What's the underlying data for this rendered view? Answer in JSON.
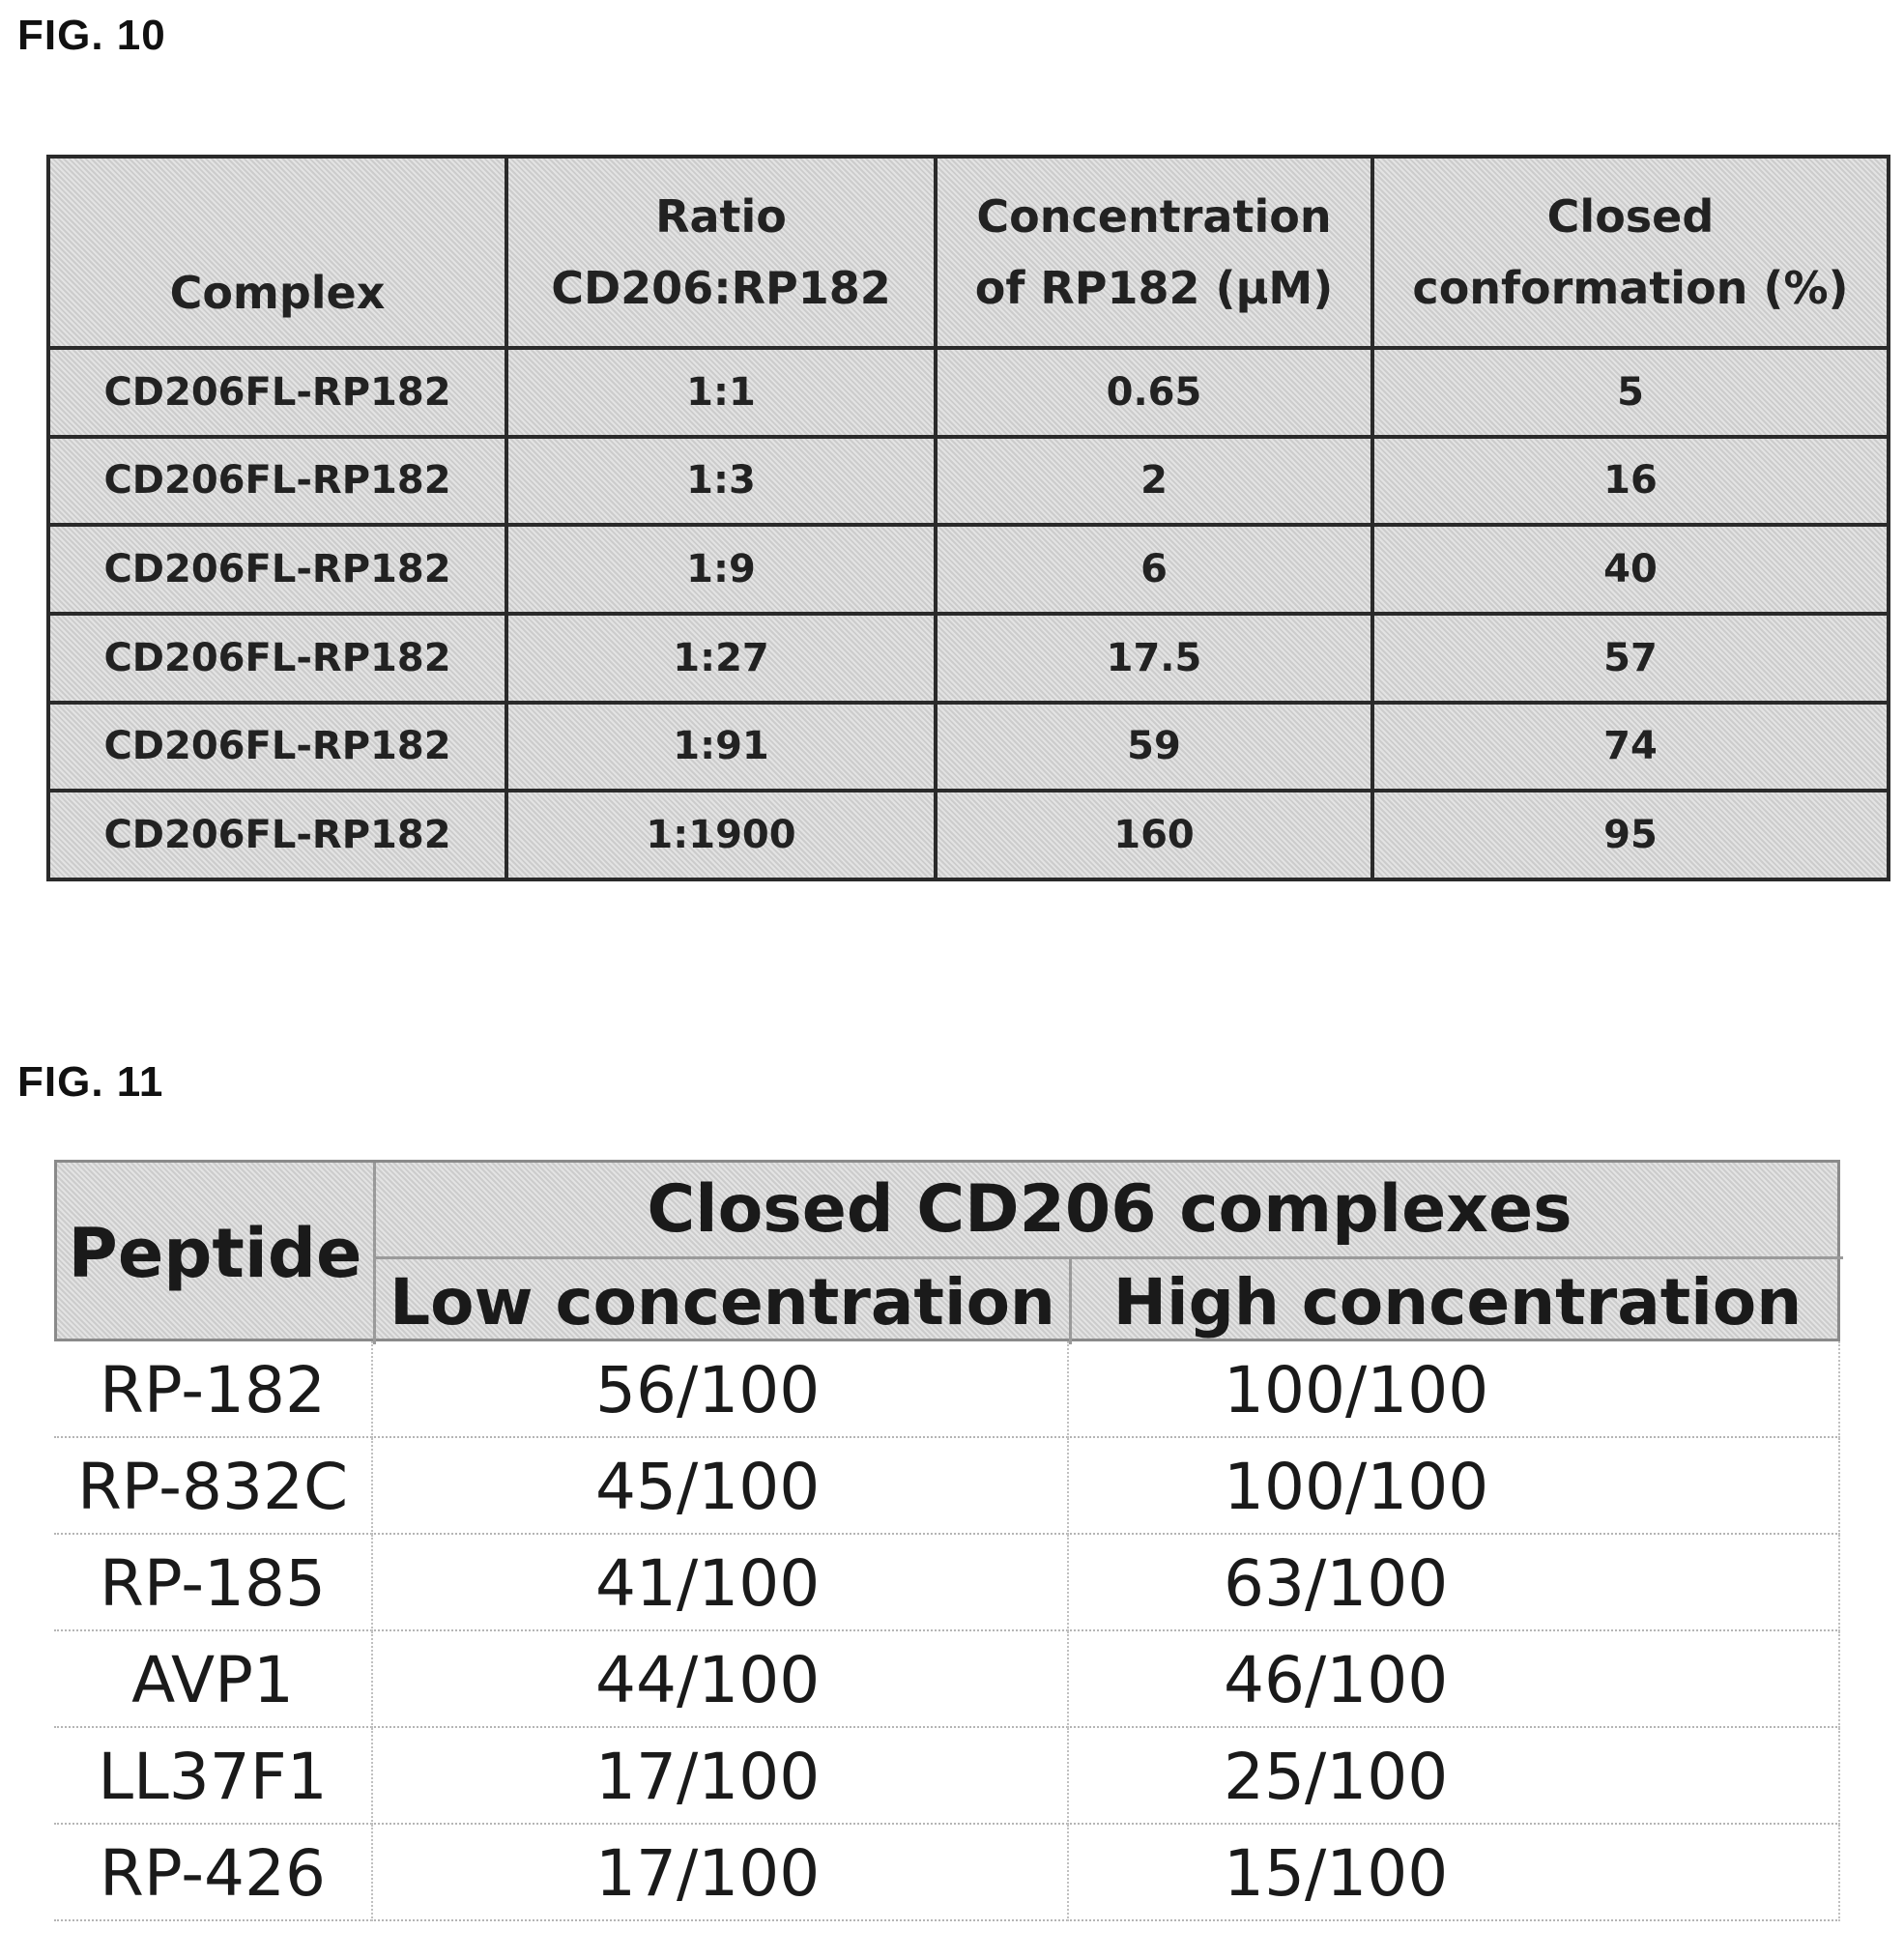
{
  "fig10": {
    "label": "FIG. 10",
    "headers": {
      "complex": "Complex",
      "ratio_line1": "Ratio",
      "ratio_line2": "CD206:RP182",
      "conc_line1": "Concentration",
      "conc_line2": "of RP182 (μM)",
      "closed_line1": "Closed",
      "closed_line2": "conformation (%)"
    },
    "rows": [
      {
        "complex": "CD206FL-RP182",
        "ratio": "1:1",
        "concentration": "0.65",
        "closed": "5"
      },
      {
        "complex": "CD206FL-RP182",
        "ratio": "1:3",
        "concentration": "2",
        "closed": "16"
      },
      {
        "complex": "CD206FL-RP182",
        "ratio": "1:9",
        "concentration": "6",
        "closed": "40"
      },
      {
        "complex": "CD206FL-RP182",
        "ratio": "1:27",
        "concentration": "17.5",
        "closed": "57"
      },
      {
        "complex": "CD206FL-RP182",
        "ratio": "1:91",
        "concentration": "59",
        "closed": "74"
      },
      {
        "complex": "CD206FL-RP182",
        "ratio": "1:1900",
        "concentration": "160",
        "closed": "95"
      }
    ]
  },
  "fig11": {
    "label": "FIG. 11",
    "headers": {
      "peptide": "Peptide",
      "group": "Closed CD206 complexes",
      "low": "Low concentration",
      "high": "High concentration"
    },
    "rows": [
      {
        "peptide": "RP-182",
        "low": "56/100",
        "high": "100/100"
      },
      {
        "peptide": "RP-832C",
        "low": "45/100",
        "high": "100/100"
      },
      {
        "peptide": "RP-185",
        "low": "41/100",
        "high": "63/100"
      },
      {
        "peptide": "AVP1",
        "low": "44/100",
        "high": "46/100"
      },
      {
        "peptide": "LL37F1",
        "low": "17/100",
        "high": "25/100"
      },
      {
        "peptide": "RP-426",
        "low": "17/100",
        "high": "15/100"
      }
    ]
  }
}
